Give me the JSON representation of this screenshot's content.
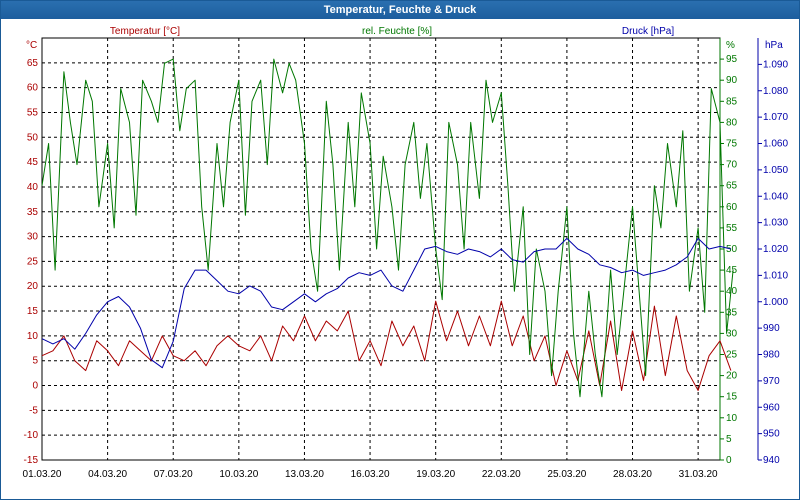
{
  "window": {
    "title": "Temperatur, Feuchte & Druck"
  },
  "chart_data": {
    "type": "line",
    "title": "Temperatur, Feuchte & Druck",
    "grid": true,
    "x": {
      "tick_labels": [
        "01.03.20",
        "04.03.20",
        "07.03.20",
        "10.03.20",
        "13.03.20",
        "16.03.20",
        "19.03.20",
        "22.03.20",
        "25.03.20",
        "28.03.20",
        "31.03.20"
      ],
      "range_days": [
        0,
        31
      ]
    },
    "axes": {
      "temperature": {
        "unit": "°C",
        "range": [
          -15,
          70
        ],
        "ticks": [
          -15,
          -10,
          -5,
          0,
          5,
          10,
          15,
          20,
          25,
          30,
          35,
          40,
          45,
          50,
          55,
          60,
          65
        ],
        "color": "#aa0000"
      },
      "humidity": {
        "unit": "%",
        "range": [
          0,
          100
        ],
        "ticks": [
          0,
          5,
          10,
          15,
          20,
          25,
          30,
          35,
          40,
          45,
          50,
          55,
          60,
          65,
          70,
          75,
          80,
          85,
          90,
          95
        ],
        "color": "#007700"
      },
      "pressure": {
        "unit": "hPa",
        "range": [
          940,
          1100
        ],
        "ticks": [
          "940",
          "950",
          "960",
          "970",
          "980",
          "990",
          "1.000",
          "1.010",
          "1.020",
          "1.030",
          "1.040",
          "1.050",
          "1.060",
          "1.070",
          "1.080",
          "1.090"
        ],
        "color": "#0000aa"
      }
    },
    "series": [
      {
        "name": "Temperatur [°C]",
        "axis": "temperature",
        "color": "#aa0000",
        "points": [
          [
            0,
            6
          ],
          [
            0.5,
            7
          ],
          [
            1,
            10
          ],
          [
            1.5,
            5
          ],
          [
            2,
            3
          ],
          [
            2.5,
            9
          ],
          [
            3,
            7
          ],
          [
            3.5,
            4
          ],
          [
            4,
            9
          ],
          [
            4.5,
            7
          ],
          [
            5,
            5
          ],
          [
            5.5,
            10
          ],
          [
            6,
            6
          ],
          [
            6.5,
            5
          ],
          [
            7,
            7
          ],
          [
            7.5,
            4
          ],
          [
            8,
            8
          ],
          [
            8.5,
            10
          ],
          [
            9,
            8
          ],
          [
            9.5,
            7
          ],
          [
            10,
            10
          ],
          [
            10.5,
            5
          ],
          [
            11,
            12
          ],
          [
            11.5,
            9
          ],
          [
            12,
            14
          ],
          [
            12.5,
            9
          ],
          [
            13,
            13
          ],
          [
            13.5,
            11
          ],
          [
            14,
            15
          ],
          [
            14.5,
            5
          ],
          [
            15,
            9
          ],
          [
            15.5,
            4
          ],
          [
            16,
            13
          ],
          [
            16.5,
            8
          ],
          [
            17,
            12
          ],
          [
            17.5,
            5
          ],
          [
            18,
            17
          ],
          [
            18.5,
            9
          ],
          [
            19,
            15
          ],
          [
            19.5,
            8
          ],
          [
            20,
            14
          ],
          [
            20.5,
            8
          ],
          [
            21,
            17
          ],
          [
            21.5,
            8
          ],
          [
            22,
            14
          ],
          [
            22.5,
            5
          ],
          [
            23,
            10
          ],
          [
            23.5,
            0
          ],
          [
            24,
            7
          ],
          [
            24.5,
            1
          ],
          [
            25,
            11
          ],
          [
            25.5,
            0
          ],
          [
            26,
            13
          ],
          [
            26.5,
            -1
          ],
          [
            27,
            11
          ],
          [
            27.5,
            1
          ],
          [
            28,
            16
          ],
          [
            28.5,
            2
          ],
          [
            29,
            14
          ],
          [
            29.5,
            3
          ],
          [
            30,
            -1
          ],
          [
            30.5,
            6
          ],
          [
            31,
            9
          ],
          [
            31.5,
            3
          ]
        ]
      },
      {
        "name": "rel. Feuchte [%]",
        "axis": "humidity",
        "color": "#007700",
        "points": [
          [
            0,
            65
          ],
          [
            0.3,
            75
          ],
          [
            0.6,
            45
          ],
          [
            1,
            92
          ],
          [
            1.3,
            80
          ],
          [
            1.6,
            70
          ],
          [
            2,
            90
          ],
          [
            2.3,
            85
          ],
          [
            2.6,
            60
          ],
          [
            3,
            75
          ],
          [
            3.3,
            55
          ],
          [
            3.6,
            88
          ],
          [
            4,
            80
          ],
          [
            4.3,
            58
          ],
          [
            4.6,
            90
          ],
          [
            5,
            85
          ],
          [
            5.3,
            80
          ],
          [
            5.6,
            94
          ],
          [
            6,
            95
          ],
          [
            6.3,
            78
          ],
          [
            6.6,
            88
          ],
          [
            7,
            90
          ],
          [
            7.3,
            60
          ],
          [
            7.6,
            45
          ],
          [
            8,
            75
          ],
          [
            8.3,
            60
          ],
          [
            8.6,
            80
          ],
          [
            9,
            90
          ],
          [
            9.3,
            58
          ],
          [
            9.6,
            85
          ],
          [
            10,
            90
          ],
          [
            10.3,
            70
          ],
          [
            10.6,
            95
          ],
          [
            11,
            87
          ],
          [
            11.3,
            94
          ],
          [
            11.6,
            90
          ],
          [
            12,
            75
          ],
          [
            12.3,
            50
          ],
          [
            12.6,
            40
          ],
          [
            13,
            85
          ],
          [
            13.3,
            70
          ],
          [
            13.6,
            45
          ],
          [
            14,
            80
          ],
          [
            14.3,
            60
          ],
          [
            14.6,
            87
          ],
          [
            15,
            75
          ],
          [
            15.3,
            50
          ],
          [
            15.6,
            72
          ],
          [
            16,
            60
          ],
          [
            16.3,
            45
          ],
          [
            16.6,
            70
          ],
          [
            17,
            80
          ],
          [
            17.3,
            62
          ],
          [
            17.6,
            75
          ],
          [
            18,
            50
          ],
          [
            18.3,
            38
          ],
          [
            18.6,
            80
          ],
          [
            19,
            70
          ],
          [
            19.3,
            50
          ],
          [
            19.6,
            80
          ],
          [
            20,
            62
          ],
          [
            20.3,
            90
          ],
          [
            20.6,
            80
          ],
          [
            21,
            87
          ],
          [
            21.3,
            65
          ],
          [
            21.6,
            40
          ],
          [
            22,
            60
          ],
          [
            22.3,
            25
          ],
          [
            22.6,
            50
          ],
          [
            23,
            40
          ],
          [
            23.3,
            20
          ],
          [
            23.6,
            40
          ],
          [
            24,
            60
          ],
          [
            24.3,
            30
          ],
          [
            24.6,
            15
          ],
          [
            25,
            40
          ],
          [
            25.3,
            25
          ],
          [
            25.6,
            15
          ],
          [
            26,
            45
          ],
          [
            26.3,
            25
          ],
          [
            26.6,
            40
          ],
          [
            27,
            60
          ],
          [
            27.3,
            40
          ],
          [
            27.6,
            20
          ],
          [
            28,
            65
          ],
          [
            28.3,
            55
          ],
          [
            28.6,
            75
          ],
          [
            29,
            60
          ],
          [
            29.3,
            78
          ],
          [
            29.6,
            40
          ],
          [
            30,
            55
          ],
          [
            30.3,
            35
          ],
          [
            30.6,
            88
          ],
          [
            31,
            80
          ],
          [
            31.3,
            30
          ],
          [
            31.6,
            45
          ]
        ]
      },
      {
        "name": "Druck [hPa]",
        "axis": "pressure",
        "color": "#0000aa",
        "points": [
          [
            0,
            986
          ],
          [
            0.5,
            984
          ],
          [
            1,
            986
          ],
          [
            1.5,
            982
          ],
          [
            2,
            988
          ],
          [
            2.5,
            995
          ],
          [
            3,
            1000
          ],
          [
            3.5,
            1002
          ],
          [
            4,
            998
          ],
          [
            4.5,
            990
          ],
          [
            5,
            978
          ],
          [
            5.5,
            975
          ],
          [
            6,
            985
          ],
          [
            6.5,
            1005
          ],
          [
            7,
            1012
          ],
          [
            7.5,
            1012
          ],
          [
            8,
            1008
          ],
          [
            8.5,
            1004
          ],
          [
            9,
            1003
          ],
          [
            9.5,
            1006
          ],
          [
            10,
            1004
          ],
          [
            10.5,
            998
          ],
          [
            11,
            997
          ],
          [
            11.5,
            1000
          ],
          [
            12,
            1003
          ],
          [
            12.5,
            1000
          ],
          [
            13,
            1003
          ],
          [
            13.5,
            1005
          ],
          [
            14,
            1009
          ],
          [
            14.5,
            1011
          ],
          [
            15,
            1010
          ],
          [
            15.5,
            1012
          ],
          [
            16,
            1006
          ],
          [
            16.5,
            1004
          ],
          [
            17,
            1012
          ],
          [
            17.5,
            1020
          ],
          [
            18,
            1021
          ],
          [
            18.5,
            1019
          ],
          [
            19,
            1018
          ],
          [
            19.5,
            1020
          ],
          [
            20,
            1019
          ],
          [
            20.5,
            1017
          ],
          [
            21,
            1020
          ],
          [
            21.5,
            1016
          ],
          [
            22,
            1015
          ],
          [
            22.5,
            1019
          ],
          [
            23,
            1020
          ],
          [
            23.5,
            1020
          ],
          [
            24,
            1024
          ],
          [
            24.5,
            1020
          ],
          [
            25,
            1018
          ],
          [
            25.5,
            1014
          ],
          [
            26,
            1013
          ],
          [
            26.5,
            1011
          ],
          [
            27,
            1012
          ],
          [
            27.5,
            1010
          ],
          [
            28,
            1011
          ],
          [
            28.5,
            1012
          ],
          [
            29,
            1014
          ],
          [
            29.5,
            1017
          ],
          [
            30,
            1024
          ],
          [
            30.5,
            1020
          ],
          [
            31,
            1021
          ],
          [
            31.5,
            1020
          ]
        ]
      }
    ],
    "legend": [
      {
        "label": "Temperatur [°C]",
        "color": "#aa0000"
      },
      {
        "label": "rel. Feuchte [%]",
        "color": "#007700"
      },
      {
        "label": "Druck [hPa]",
        "color": "#0000aa"
      }
    ]
  }
}
